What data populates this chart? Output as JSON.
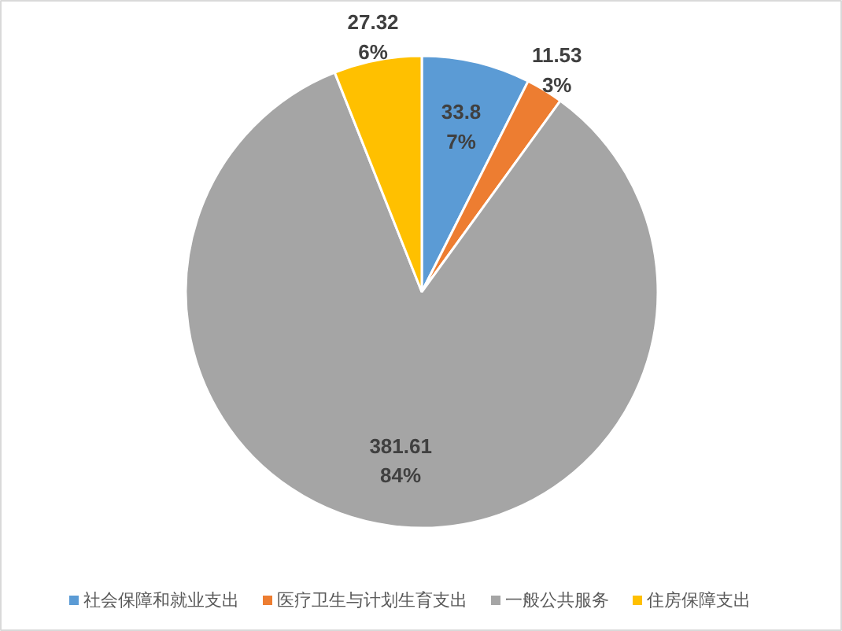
{
  "chart_data": {
    "type": "pie",
    "categories": [
      "社会保障和就业支出",
      "医疗卫生与计划生育支出",
      "一般公共服务",
      "住房保障支出"
    ],
    "values": [
      33.8,
      11.53,
      381.61,
      27.32
    ],
    "colors": [
      "#5b9bd5",
      "#ed7d31",
      "#a5a5a5",
      "#ffc000"
    ],
    "value_labels": [
      "33.8\n7%",
      "11.53\n3%",
      "381.61\n84%",
      "27.32\n6%"
    ],
    "legend": "bottom"
  }
}
